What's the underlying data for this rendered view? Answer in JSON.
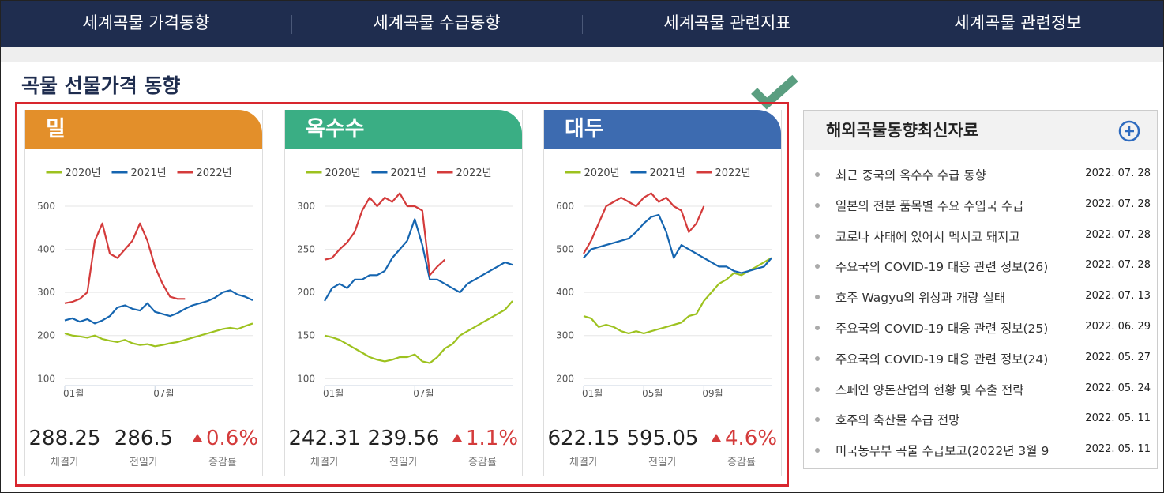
{
  "nav": [
    "세계곡물 가격동향",
    "세계곡물 수급동향",
    "세계곡물 관련지표",
    "세계곡물 관련정보"
  ],
  "section_title": "곡물 선물가격 동향",
  "chart_data": [
    {
      "type": "line",
      "title": "밀",
      "header_color": "#e38f2a",
      "categories": [
        "01월",
        null,
        null,
        null,
        null,
        null,
        null,
        null,
        null,
        null,
        null,
        null,
        "07월",
        null,
        null,
        null,
        null,
        null,
        null,
        null,
        null,
        null,
        null,
        null,
        null,
        null
      ],
      "ylim": [
        84,
        500
      ],
      "yticks": [
        100,
        200,
        300,
        400,
        500
      ],
      "grid": true,
      "series": [
        {
          "name": "2020년",
          "color": "#9dc21f",
          "values": [
            205,
            200,
            198,
            195,
            200,
            192,
            188,
            185,
            190,
            182,
            178,
            180,
            175,
            178,
            182,
            185,
            190,
            195,
            200,
            205,
            210,
            215,
            218,
            215,
            222,
            228
          ]
        },
        {
          "name": "2021년",
          "color": "#1565b0",
          "values": [
            235,
            240,
            232,
            238,
            228,
            235,
            245,
            265,
            270,
            262,
            258,
            275,
            255,
            250,
            245,
            252,
            262,
            270,
            275,
            280,
            288,
            300,
            305,
            295,
            290,
            282
          ]
        },
        {
          "name": "2022년",
          "color": "#d43b3b",
          "values": [
            275,
            278,
            285,
            300,
            420,
            460,
            390,
            380,
            400,
            420,
            460,
            420,
            360,
            320,
            290,
            285,
            285,
            null,
            null,
            null,
            null,
            null,
            null,
            null,
            null,
            null
          ]
        }
      ],
      "stats": [
        {
          "value": 288.25,
          "label": "체결가"
        },
        {
          "value": 286.5,
          "label": "전일가"
        },
        {
          "value": "0.6%",
          "label": "증감률"
        }
      ]
    },
    {
      "type": "line",
      "title": "옥수수",
      "header_color": "#3aae84",
      "categories": [
        "01월",
        null,
        null,
        null,
        null,
        null,
        null,
        null,
        null,
        null,
        null,
        null,
        "07월",
        null,
        null,
        null,
        null,
        null,
        null,
        null,
        null,
        null,
        null,
        null,
        null,
        null
      ],
      "ylim": [
        92,
        300
      ],
      "yticks": [
        100,
        150,
        200,
        250,
        300
      ],
      "grid": true,
      "series": [
        {
          "name": "2020년",
          "color": "#9dc21f",
          "values": [
            150,
            148,
            145,
            140,
            135,
            130,
            125,
            122,
            120,
            122,
            125,
            125,
            128,
            120,
            118,
            125,
            135,
            140,
            150,
            155,
            160,
            165,
            170,
            175,
            180,
            190
          ]
        },
        {
          "name": "2021년",
          "color": "#1565b0",
          "values": [
            190,
            205,
            210,
            205,
            215,
            215,
            220,
            220,
            225,
            240,
            250,
            260,
            285,
            255,
            215,
            215,
            210,
            205,
            200,
            210,
            215,
            220,
            225,
            230,
            235,
            232
          ]
        },
        {
          "name": "2022년",
          "color": "#d43b3b",
          "values": [
            238,
            240,
            250,
            258,
            270,
            295,
            310,
            300,
            310,
            305,
            315,
            300,
            300,
            295,
            220,
            230,
            238,
            null,
            null,
            null,
            null,
            null,
            null,
            null,
            null,
            null
          ]
        }
      ],
      "stats": [
        {
          "value": 242.31,
          "label": "체결가"
        },
        {
          "value": 239.56,
          "label": "전일가"
        },
        {
          "value": "1.1%",
          "label": "증감률"
        }
      ]
    },
    {
      "type": "line",
      "title": "대두",
      "header_color": "#3d6bb0",
      "categories": [
        "01월",
        null,
        null,
        null,
        null,
        null,
        null,
        null,
        "05월",
        null,
        null,
        null,
        null,
        null,
        null,
        null,
        "09월",
        null,
        null,
        null,
        null,
        null,
        null,
        null,
        null,
        null
      ],
      "ylim": [
        184,
        600
      ],
      "yticks": [
        200,
        300,
        400,
        500,
        600
      ],
      "grid": true,
      "series": [
        {
          "name": "2020년",
          "color": "#9dc21f",
          "values": [
            345,
            340,
            320,
            325,
            320,
            310,
            305,
            310,
            305,
            310,
            315,
            320,
            325,
            330,
            345,
            350,
            380,
            400,
            420,
            430,
            445,
            440,
            450,
            460,
            470,
            480
          ]
        },
        {
          "name": "2021년",
          "color": "#1565b0",
          "values": [
            480,
            500,
            505,
            510,
            515,
            520,
            525,
            540,
            560,
            575,
            580,
            540,
            480,
            510,
            500,
            490,
            480,
            470,
            460,
            460,
            450,
            445,
            450,
            455,
            460,
            480
          ]
        },
        {
          "name": "2022년",
          "color": "#d43b3b",
          "values": [
            490,
            520,
            560,
            600,
            610,
            620,
            610,
            600,
            620,
            630,
            610,
            620,
            600,
            590,
            540,
            560,
            600,
            null,
            null,
            null,
            null,
            null,
            null,
            null,
            null,
            null
          ]
        }
      ],
      "stats": [
        {
          "value": 622.15,
          "label": "체결가"
        },
        {
          "value": 595.05,
          "label": "전일가"
        },
        {
          "value": "4.6%",
          "label": "증감률"
        }
      ]
    }
  ],
  "news": {
    "title": "해외곡물동향최신자료",
    "items": [
      {
        "title": "최근 중국의 옥수수 수급 동향",
        "date": "2022. 07. 28"
      },
      {
        "title": "일본의 전분 품목별 주요 수입국 수급",
        "date": "2022. 07. 28"
      },
      {
        "title": "코로나 사태에 있어서 멕시코 돼지고",
        "date": "2022. 07. 28"
      },
      {
        "title": "주요국의 COVID-19 대응 관련 정보(26)",
        "date": "2022. 07. 28"
      },
      {
        "title": "호주 Wagyu의 위상과 개량 실태",
        "date": "2022. 07. 13"
      },
      {
        "title": "주요국의 COVID-19 대응 관련 정보(25)",
        "date": "2022. 06. 29"
      },
      {
        "title": "주요국의 COVID-19 대응 관련 정보(24)",
        "date": "2022. 05. 27"
      },
      {
        "title": "스페인 양돈산업의 현황 및 수출 전략",
        "date": "2022. 05. 24"
      },
      {
        "title": "호주의 축산물 수급 전망",
        "date": "2022. 05. 11"
      },
      {
        "title": "미국농무부 곡물 수급보고(2022년 3월 9",
        "date": "2022. 05. 11"
      }
    ]
  }
}
